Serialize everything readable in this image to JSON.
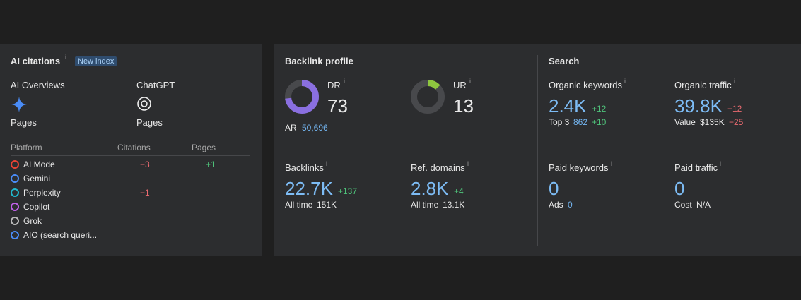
{
  "info_icon": "i",
  "ai_citations": {
    "title": "AI citations",
    "badge": "New index",
    "sources": [
      {
        "name": "AI Overviews",
        "label": "Pages"
      },
      {
        "name": "ChatGPT",
        "label": "Pages"
      }
    ],
    "table": {
      "headers": [
        "Platform",
        "Citations",
        "Pages"
      ],
      "rows": [
        {
          "platform": "AI Mode",
          "citations": "−3",
          "pages": "+1"
        },
        {
          "platform": "Gemini"
        },
        {
          "platform": "Perplexity",
          "citations": "−1"
        },
        {
          "platform": "Copilot"
        },
        {
          "platform": "Grok"
        },
        {
          "platform": "AIO (search queri..."
        }
      ]
    }
  },
  "backlink_profile": {
    "title": "Backlink profile",
    "dr": {
      "label": "DR",
      "value": 73
    },
    "ar": {
      "label": "AR",
      "value": "50,696"
    },
    "ur": {
      "label": "UR",
      "value": 13
    },
    "backlinks": {
      "label": "Backlinks",
      "value": "22.7K",
      "change": "+137",
      "sub_label": "All time",
      "sub_value": "151K"
    },
    "ref_domains": {
      "label": "Ref. domains",
      "value": "2.8K",
      "change": "+4",
      "sub_label": "All time",
      "sub_value": "13.1K"
    }
  },
  "search": {
    "title": "Search",
    "organic_keywords": {
      "label": "Organic keywords",
      "value": "2.4K",
      "change": "+12",
      "sub_label": "Top 3",
      "sub_value": "862",
      "sub_change": "+10"
    },
    "organic_traffic": {
      "label": "Organic traffic",
      "value": "39.8K",
      "change": "−12",
      "sub_label": "Value",
      "sub_value": "$135K",
      "sub_change": "−25"
    },
    "paid_keywords": {
      "label": "Paid keywords",
      "value": "0",
      "sub_label": "Ads",
      "sub_value": "0"
    },
    "paid_traffic": {
      "label": "Paid traffic",
      "value": "0",
      "sub_label": "Cost",
      "sub_value": "N/A"
    }
  }
}
